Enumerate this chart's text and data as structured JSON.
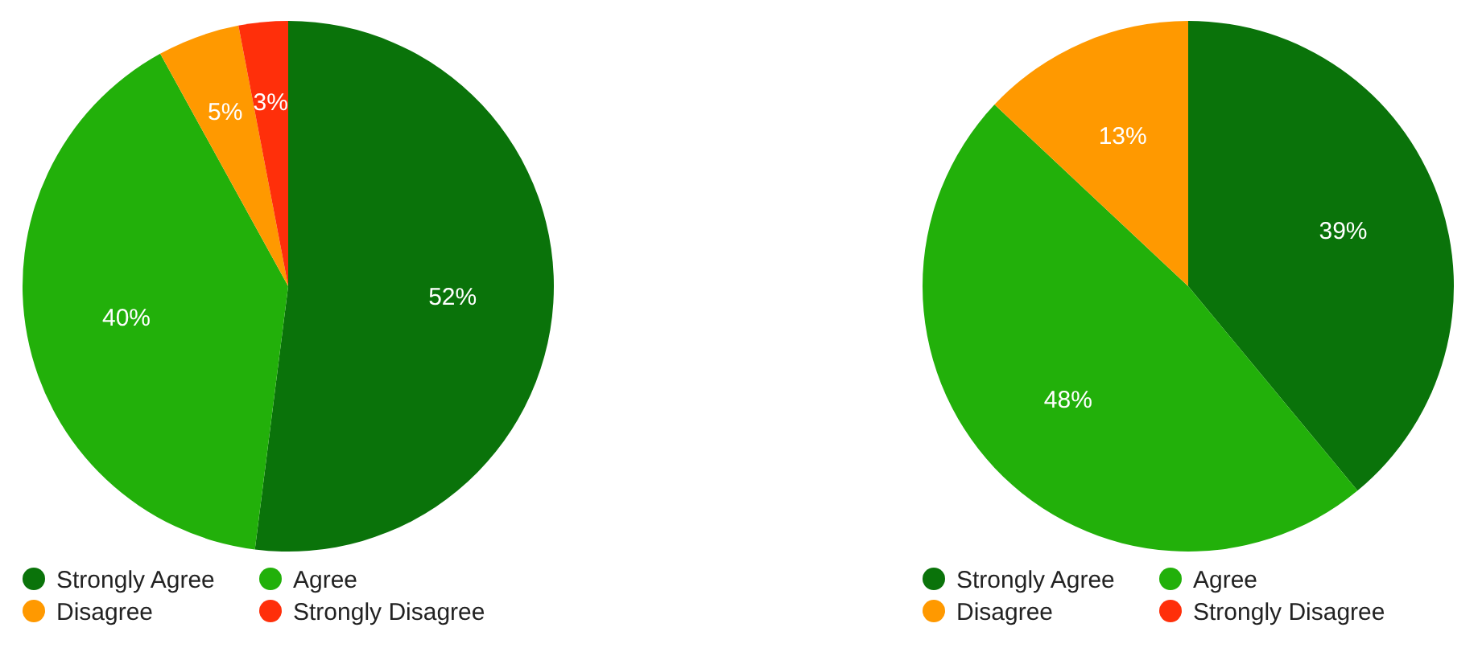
{
  "chart_data": [
    {
      "type": "pie",
      "categories": [
        "Strongly Agree",
        "Agree",
        "Disagree",
        "Strongly Disagree"
      ],
      "values": [
        52,
        40,
        5,
        3
      ],
      "value_labels": [
        "52%",
        "40%",
        "5%",
        "3%"
      ],
      "colors": [
        "#0a730a",
        "#22b00a",
        "#ff9900",
        "#ff2f0a"
      ],
      "legend": "bottom"
    },
    {
      "type": "pie",
      "categories": [
        "Strongly Agree",
        "Agree",
        "Disagree",
        "Strongly Disagree"
      ],
      "values": [
        39,
        48,
        13,
        0
      ],
      "value_labels": [
        "39%",
        "48%",
        "13%",
        null
      ],
      "colors": [
        "#0a730a",
        "#22b00a",
        "#ff9900",
        "#ff2f0a"
      ],
      "legend": "bottom"
    }
  ]
}
